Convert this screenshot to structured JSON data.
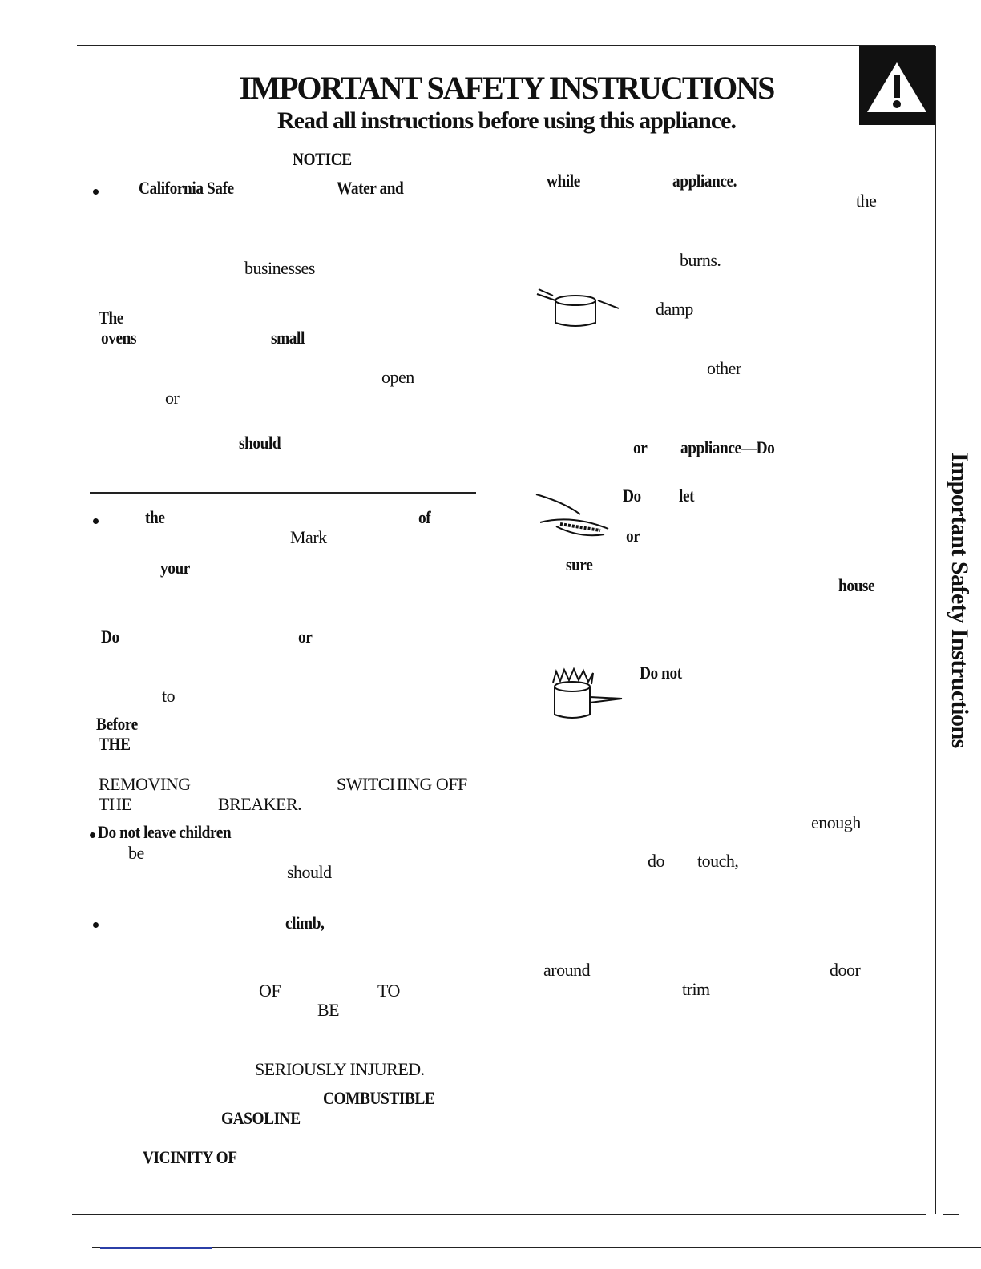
{
  "header": {
    "title": "IMPORTANT SAFETY INSTRUCTIONS",
    "subtitle": "Read all instructions before using this appliance."
  },
  "side_tab": "Important Safety Instructions",
  "left_column": [
    "NOTICE",
    "California Safe",
    "Water and",
    "businesses",
    "The",
    "ovens",
    "small",
    "open",
    "or",
    "should",
    "the",
    "of",
    "Mark",
    "your",
    "Do",
    "or",
    "to",
    "Before",
    "THE",
    "REMOVING",
    "SWITCHING OFF",
    "THE",
    "BREAKER.",
    "Do not leave children",
    "be",
    "should",
    "climb,",
    "OF",
    "TO",
    "BE",
    "SERIOUSLY INJURED.",
    "COMBUSTIBLE",
    "GASOLINE",
    "VICINITY OF"
  ],
  "right_column": [
    "while",
    "appliance.",
    "the",
    "burns.",
    "damp",
    "other",
    "or",
    "appliance—Do",
    "Do",
    "let",
    "or",
    "sure",
    "house",
    "Do not",
    "enough",
    "do",
    "touch,",
    "around",
    "door",
    "trim"
  ]
}
